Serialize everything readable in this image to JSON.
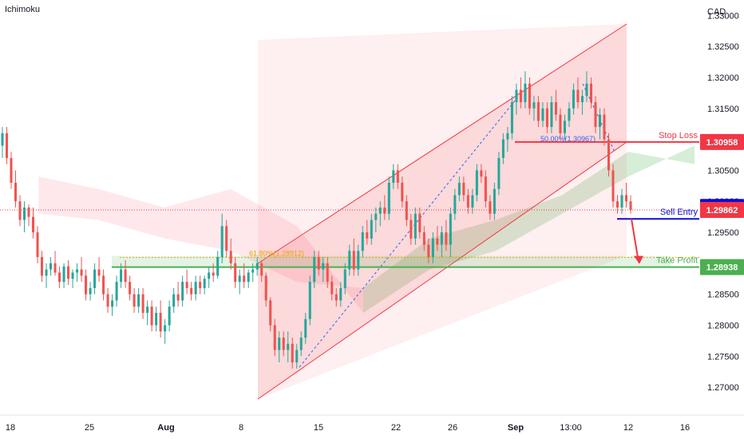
{
  "indicator_label": "Ichimoku",
  "currency": "CAD",
  "chart_data": {
    "type": "candlestick",
    "y_ticks": [
      "1.33000",
      "1.32500",
      "1.32000",
      "1.31500",
      "1.31000",
      "1.30500",
      "1.30000",
      "1.29500",
      "1.29000",
      "1.28500",
      "1.28000",
      "1.27500",
      "1.27000"
    ],
    "y_tick_values": [
      1.33,
      1.325,
      1.32,
      1.315,
      1.31,
      1.305,
      1.3,
      1.295,
      1.29,
      1.285,
      1.28,
      1.275,
      1.27
    ],
    "ylim": [
      1.2655,
      1.3325
    ],
    "x_ticks": [
      "18",
      "25",
      "Aug",
      "8",
      "15",
      "22",
      "26",
      "Sep",
      "13:00",
      "12",
      "16"
    ],
    "x_tick_bold": [
      false,
      false,
      true,
      false,
      false,
      false,
      false,
      true,
      false,
      false,
      false
    ],
    "price_levels": [
      {
        "key": "stop_loss",
        "label": "Stop Loss",
        "value": "1.30958",
        "price": 1.30958,
        "color": "#f23645"
      },
      {
        "key": "sell_entry",
        "label": "Sell Entry",
        "value": "1.29910",
        "price": 1.2991,
        "color": "#0c0cd6"
      },
      {
        "key": "last_price",
        "label": "",
        "value": "1.29862",
        "price": 1.29862,
        "color": "#f23645"
      },
      {
        "key": "take_profit",
        "label": "Take Profit",
        "value": "1.28938",
        "price": 1.28938,
        "color": "#4caf50"
      }
    ],
    "fib_labels": [
      {
        "text": "61.80%(1.28912)",
        "color": "#e0a800"
      },
      {
        "text": "50.00%(1.30967)",
        "color": "#2962ff"
      }
    ],
    "channel_color": "#f23645",
    "up_color": "#26a69a",
    "down_color": "#ef5350",
    "cloud_bull_color": "#a5d6a7",
    "cloud_bear_color": "#ffcdd2",
    "candles": [
      [
        1.309,
        1.312,
        1.307,
        1.311
      ],
      [
        1.311,
        1.312,
        1.306,
        1.307
      ],
      [
        1.307,
        1.308,
        1.302,
        1.303
      ],
      [
        1.303,
        1.305,
        1.299,
        1.3
      ],
      [
        1.3,
        1.301,
        1.296,
        1.297
      ],
      [
        1.297,
        1.3,
        1.295,
        1.299
      ],
      [
        1.299,
        1.2995,
        1.296,
        1.2975
      ],
      [
        1.2975,
        1.299,
        1.294,
        1.295
      ],
      [
        1.295,
        1.296,
        1.29,
        1.291
      ],
      [
        1.291,
        1.292,
        1.287,
        1.288
      ],
      [
        1.288,
        1.29,
        1.286,
        1.289
      ],
      [
        1.289,
        1.291,
        1.288,
        1.29
      ],
      [
        1.29,
        1.292,
        1.288,
        1.2885
      ],
      [
        1.2885,
        1.2895,
        1.286,
        1.287
      ],
      [
        1.287,
        1.29,
        1.286,
        1.2895
      ],
      [
        1.2895,
        1.2905,
        1.2865,
        1.2875
      ],
      [
        1.2875,
        1.289,
        1.286,
        1.2885
      ],
      [
        1.2885,
        1.29,
        1.287,
        1.289
      ],
      [
        1.289,
        1.291,
        1.287,
        1.288
      ],
      [
        1.288,
        1.289,
        1.284,
        1.285
      ],
      [
        1.285,
        1.287,
        1.284,
        1.286
      ],
      [
        1.286,
        1.29,
        1.285,
        1.289
      ],
      [
        1.289,
        1.291,
        1.287,
        1.288
      ],
      [
        1.288,
        1.289,
        1.284,
        1.285
      ],
      [
        1.285,
        1.286,
        1.282,
        1.283
      ],
      [
        1.283,
        1.285,
        1.2815,
        1.284
      ],
      [
        1.284,
        1.288,
        1.283,
        1.287
      ],
      [
        1.287,
        1.29,
        1.286,
        1.289
      ],
      [
        1.289,
        1.2905,
        1.286,
        1.287
      ],
      [
        1.287,
        1.288,
        1.284,
        1.285
      ],
      [
        1.285,
        1.286,
        1.282,
        1.283
      ],
      [
        1.283,
        1.286,
        1.282,
        1.285
      ],
      [
        1.285,
        1.286,
        1.281,
        1.282
      ],
      [
        1.282,
        1.284,
        1.28,
        1.283
      ],
      [
        1.283,
        1.284,
        1.279,
        1.28
      ],
      [
        1.28,
        1.283,
        1.279,
        1.282
      ],
      [
        1.282,
        1.284,
        1.278,
        1.279
      ],
      [
        1.279,
        1.281,
        1.277,
        1.28
      ],
      [
        1.28,
        1.284,
        1.279,
        1.283
      ],
      [
        1.283,
        1.286,
        1.282,
        1.285
      ],
      [
        1.285,
        1.287,
        1.283,
        1.284
      ],
      [
        1.284,
        1.288,
        1.283,
        1.287
      ],
      [
        1.287,
        1.289,
        1.285,
        1.286
      ],
      [
        1.286,
        1.287,
        1.284,
        1.285
      ],
      [
        1.285,
        1.288,
        1.284,
        1.287
      ],
      [
        1.287,
        1.288,
        1.285,
        1.286
      ],
      [
        1.286,
        1.288,
        1.285,
        1.2875
      ],
      [
        1.2875,
        1.2895,
        1.286,
        1.2885
      ],
      [
        1.2885,
        1.29,
        1.287,
        1.288
      ],
      [
        1.288,
        1.292,
        1.2875,
        1.291
      ],
      [
        1.291,
        1.298,
        1.29,
        1.296
      ],
      [
        1.296,
        1.297,
        1.291,
        1.292
      ],
      [
        1.292,
        1.294,
        1.289,
        1.29
      ],
      [
        1.29,
        1.291,
        1.286,
        1.287
      ],
      [
        1.287,
        1.289,
        1.285,
        1.288
      ],
      [
        1.288,
        1.29,
        1.286,
        1.287
      ],
      [
        1.287,
        1.289,
        1.286,
        1.2885
      ],
      [
        1.2885,
        1.29,
        1.287,
        1.289
      ],
      [
        1.289,
        1.291,
        1.288,
        1.29
      ],
      [
        1.29,
        1.2905,
        1.287,
        1.288
      ],
      [
        1.288,
        1.2885,
        1.283,
        1.284
      ],
      [
        1.284,
        1.2845,
        1.279,
        1.28
      ],
      [
        1.28,
        1.281,
        1.275,
        1.276
      ],
      [
        1.276,
        1.279,
        1.274,
        1.278
      ],
      [
        1.278,
        1.279,
        1.275,
        1.276
      ],
      [
        1.276,
        1.279,
        1.274,
        1.277
      ],
      [
        1.277,
        1.278,
        1.273,
        1.274
      ],
      [
        1.274,
        1.277,
        1.273,
        1.276
      ],
      [
        1.276,
        1.279,
        1.275,
        1.278
      ],
      [
        1.278,
        1.282,
        1.277,
        1.281
      ],
      [
        1.281,
        1.288,
        1.28,
        1.287
      ],
      [
        1.287,
        1.292,
        1.286,
        1.291
      ],
      [
        1.291,
        1.292,
        1.288,
        1.289
      ],
      [
        1.289,
        1.291,
        1.287,
        1.29
      ],
      [
        1.29,
        1.291,
        1.286,
        1.287
      ],
      [
        1.287,
        1.288,
        1.284,
        1.285
      ],
      [
        1.285,
        1.286,
        1.283,
        1.284
      ],
      [
        1.284,
        1.287,
        1.283,
        1.286
      ],
      [
        1.286,
        1.29,
        1.285,
        1.289
      ],
      [
        1.289,
        1.293,
        1.288,
        1.292
      ],
      [
        1.292,
        1.294,
        1.288,
        1.289
      ],
      [
        1.289,
        1.293,
        1.288,
        1.292
      ],
      [
        1.292,
        1.296,
        1.291,
        1.295
      ],
      [
        1.295,
        1.297,
        1.293,
        1.294
      ],
      [
        1.294,
        1.298,
        1.293,
        1.297
      ],
      [
        1.297,
        1.299,
        1.295,
        1.298
      ],
      [
        1.298,
        1.3,
        1.296,
        1.299
      ],
      [
        1.299,
        1.301,
        1.297,
        1.298
      ],
      [
        1.298,
        1.304,
        1.297,
        1.303
      ],
      [
        1.303,
        1.306,
        1.302,
        1.305
      ],
      [
        1.305,
        1.306,
        1.302,
        1.303
      ],
      [
        1.303,
        1.304,
        1.299,
        1.3
      ],
      [
        1.3,
        1.301,
        1.296,
        1.297
      ],
      [
        1.297,
        1.298,
        1.293,
        1.294
      ],
      [
        1.294,
        1.299,
        1.293,
        1.298
      ],
      [
        1.298,
        1.299,
        1.294,
        1.295
      ],
      [
        1.295,
        1.296,
        1.292,
        1.293
      ],
      [
        1.293,
        1.294,
        1.29,
        1.291
      ],
      [
        1.291,
        1.295,
        1.29,
        1.294
      ],
      [
        1.294,
        1.296,
        1.292,
        1.293
      ],
      [
        1.293,
        1.296,
        1.291,
        1.295
      ],
      [
        1.295,
        1.297,
        1.292,
        1.293
      ],
      [
        1.293,
        1.299,
        1.291,
        1.298
      ],
      [
        1.298,
        1.302,
        1.297,
        1.301
      ],
      [
        1.301,
        1.304,
        1.3,
        1.303
      ],
      [
        1.303,
        1.304,
        1.3,
        1.301
      ],
      [
        1.301,
        1.302,
        1.298,
        1.299
      ],
      [
        1.299,
        1.302,
        1.298,
        1.301
      ],
      [
        1.301,
        1.306,
        1.3,
        1.305
      ],
      [
        1.305,
        1.306,
        1.303,
        1.304
      ],
      [
        1.304,
        1.305,
        1.299,
        1.3
      ],
      [
        1.3,
        1.301,
        1.297,
        1.298
      ],
      [
        1.298,
        1.303,
        1.297,
        1.302
      ],
      [
        1.302,
        1.308,
        1.301,
        1.307
      ],
      [
        1.307,
        1.311,
        1.306,
        1.31
      ],
      [
        1.31,
        1.312,
        1.308,
        1.311
      ],
      [
        1.311,
        1.317,
        1.31,
        1.316
      ],
      [
        1.316,
        1.319,
        1.314,
        1.318
      ],
      [
        1.318,
        1.32,
        1.315,
        1.316
      ],
      [
        1.316,
        1.321,
        1.315,
        1.319
      ],
      [
        1.319,
        1.32,
        1.314,
        1.315
      ],
      [
        1.315,
        1.317,
        1.313,
        1.316
      ],
      [
        1.316,
        1.317,
        1.312,
        1.313
      ],
      [
        1.313,
        1.316,
        1.312,
        1.315
      ],
      [
        1.315,
        1.316,
        1.311,
        1.312
      ],
      [
        1.312,
        1.317,
        1.311,
        1.316
      ],
      [
        1.316,
        1.318,
        1.313,
        1.314
      ],
      [
        1.314,
        1.315,
        1.31,
        1.311
      ],
      [
        1.311,
        1.314,
        1.31,
        1.313
      ],
      [
        1.313,
        1.316,
        1.312,
        1.315
      ],
      [
        1.315,
        1.319,
        1.314,
        1.318
      ],
      [
        1.318,
        1.32,
        1.315,
        1.316
      ],
      [
        1.316,
        1.318,
        1.314,
        1.317
      ],
      [
        1.317,
        1.321,
        1.316,
        1.319
      ],
      [
        1.319,
        1.32,
        1.315,
        1.316
      ],
      [
        1.316,
        1.317,
        1.311,
        1.312
      ],
      [
        1.312,
        1.315,
        1.31,
        1.314
      ],
      [
        1.314,
        1.315,
        1.309,
        1.31
      ],
      [
        1.31,
        1.311,
        1.304,
        1.305
      ],
      [
        1.305,
        1.306,
        1.299,
        1.3
      ],
      [
        1.3,
        1.301,
        1.298,
        1.299
      ],
      [
        1.299,
        1.302,
        1.298,
        1.301
      ],
      [
        1.301,
        1.303,
        1.299,
        1.3
      ],
      [
        1.3,
        1.301,
        1.298,
        1.2986
      ]
    ],
    "cloud": {
      "x_frac": [
        0.01,
        0.1,
        0.2,
        0.3,
        0.4,
        0.5,
        0.6,
        0.7,
        0.8,
        0.9,
        1.0
      ],
      "span_a": [
        1.298,
        1.297,
        1.294,
        1.292,
        1.287,
        1.286,
        1.294,
        1.297,
        1.301,
        1.308,
        1.306
      ],
      "span_b": [
        1.304,
        1.302,
        1.299,
        1.302,
        1.296,
        1.282,
        1.289,
        1.292,
        1.298,
        1.304,
        1.309
      ]
    }
  }
}
